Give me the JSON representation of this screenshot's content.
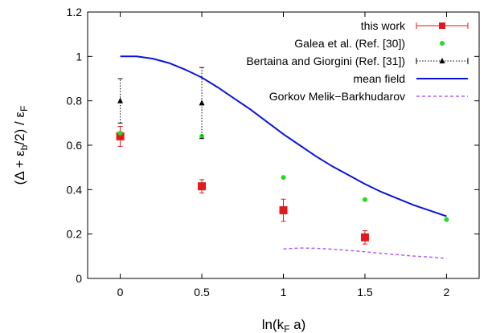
{
  "chart_data": {
    "type": "scatter",
    "xlabel": "ln(kF a)",
    "ylabel": "(Δ + εb/2) / εF",
    "xlim": [
      -0.2,
      2.2
    ],
    "ylim": [
      0,
      1.2
    ],
    "x_ticks": [
      "0",
      "0.5",
      "1",
      "1.5",
      "2"
    ],
    "y_ticks": [
      "0",
      "0.2",
      "0.4",
      "0.6",
      "0.8",
      "1",
      "1.2"
    ],
    "grid": false,
    "legend_position": "top-right",
    "series": [
      {
        "name": "this work",
        "style": "errorbar-square",
        "color": "#e31a1c",
        "points": [
          {
            "x": 0,
            "y": 0.64,
            "err": 0.045
          },
          {
            "x": 0.5,
            "y": 0.415,
            "err": 0.03
          },
          {
            "x": 1.0,
            "y": 0.307,
            "err": 0.05
          },
          {
            "x": 1.5,
            "y": 0.185,
            "err": 0.03
          }
        ]
      },
      {
        "name": "Galea et al. (Ref. [30])",
        "style": "dot",
        "color": "#22dd22",
        "points": [
          {
            "x": 0,
            "y": 0.655
          },
          {
            "x": 0.5,
            "y": 0.64
          },
          {
            "x": 1.0,
            "y": 0.455
          },
          {
            "x": 1.5,
            "y": 0.355
          },
          {
            "x": 2.0,
            "y": 0.265
          }
        ]
      },
      {
        "name": "Bertaina and Giorgini (Ref. [31])",
        "style": "dotted-errorbar-triangle",
        "color": "#000000",
        "points": [
          {
            "x": 0,
            "y": 0.8,
            "lo": 0.7,
            "hi": 0.9
          },
          {
            "x": 0.5,
            "y": 0.79,
            "lo": 0.63,
            "hi": 0.95
          }
        ]
      },
      {
        "name": "mean field",
        "style": "line",
        "color": "#0a14d8",
        "points": [
          {
            "x": 0,
            "y": 1.0
          },
          {
            "x": 0.1,
            "y": 1.0
          },
          {
            "x": 0.2,
            "y": 0.99
          },
          {
            "x": 0.3,
            "y": 0.97
          },
          {
            "x": 0.4,
            "y": 0.94
          },
          {
            "x": 0.5,
            "y": 0.905
          },
          {
            "x": 0.6,
            "y": 0.86
          },
          {
            "x": 0.7,
            "y": 0.81
          },
          {
            "x": 0.8,
            "y": 0.76
          },
          {
            "x": 0.9,
            "y": 0.705
          },
          {
            "x": 1.0,
            "y": 0.65
          },
          {
            "x": 1.1,
            "y": 0.6
          },
          {
            "x": 1.2,
            "y": 0.55
          },
          {
            "x": 1.3,
            "y": 0.505
          },
          {
            "x": 1.4,
            "y": 0.465
          },
          {
            "x": 1.5,
            "y": 0.425
          },
          {
            "x": 1.6,
            "y": 0.39
          },
          {
            "x": 1.7,
            "y": 0.36
          },
          {
            "x": 1.8,
            "y": 0.33
          },
          {
            "x": 1.9,
            "y": 0.305
          },
          {
            "x": 2.0,
            "y": 0.28
          }
        ]
      },
      {
        "name": "Gorkov Melik−Barkhudarov",
        "style": "dashed-line",
        "color": "#b05ef2",
        "points": [
          {
            "x": 1.0,
            "y": 0.133
          },
          {
            "x": 1.1,
            "y": 0.137
          },
          {
            "x": 1.2,
            "y": 0.136
          },
          {
            "x": 1.3,
            "y": 0.132
          },
          {
            "x": 1.4,
            "y": 0.126
          },
          {
            "x": 1.5,
            "y": 0.12
          },
          {
            "x": 1.6,
            "y": 0.113
          },
          {
            "x": 1.7,
            "y": 0.107
          },
          {
            "x": 1.8,
            "y": 0.101
          },
          {
            "x": 1.9,
            "y": 0.096
          },
          {
            "x": 2.0,
            "y": 0.09
          }
        ]
      }
    ]
  }
}
